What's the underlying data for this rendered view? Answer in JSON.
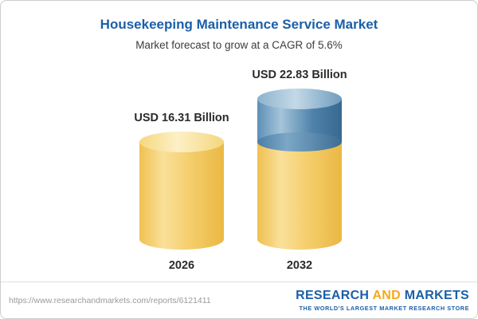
{
  "header": {
    "title": "Housekeeping Maintenance Service Market",
    "subtitle": "Market forecast to grow at a CAGR of 5.6%"
  },
  "chart_data": {
    "type": "bar",
    "subtype": "3d-cylinder",
    "title": "Housekeeping Maintenance Service Market",
    "subtitle": "Market forecast to grow at a CAGR of 5.6%",
    "categories": [
      "2026",
      "2032"
    ],
    "values": [
      16.31,
      22.83
    ],
    "value_labels": [
      "USD 16.31 Billion",
      "USD 22.83 Billion"
    ],
    "unit": "USD Billion",
    "cagr": "5.6%",
    "ylim": [
      0,
      24
    ],
    "grid": false,
    "legend": false,
    "colors": {
      "base_segment": "#F1C75F",
      "growth_segment": "#4C80A8",
      "title": "#1B5FA8"
    },
    "encoding_note": "2032 cylinder shows yellow base equal to 2026 value with blue growth segment stacked on top"
  },
  "footer": {
    "url": "https://www.researchandmarkets.com/reports/6121411",
    "logo": {
      "word1": "RESEARCH",
      "word2": "AND",
      "word3": "MARKETS",
      "tagline": "THE WORLD'S LARGEST MARKET RESEARCH STORE",
      "brand_blue": "#1B5FA8",
      "brand_orange": "#F5A81C"
    }
  }
}
